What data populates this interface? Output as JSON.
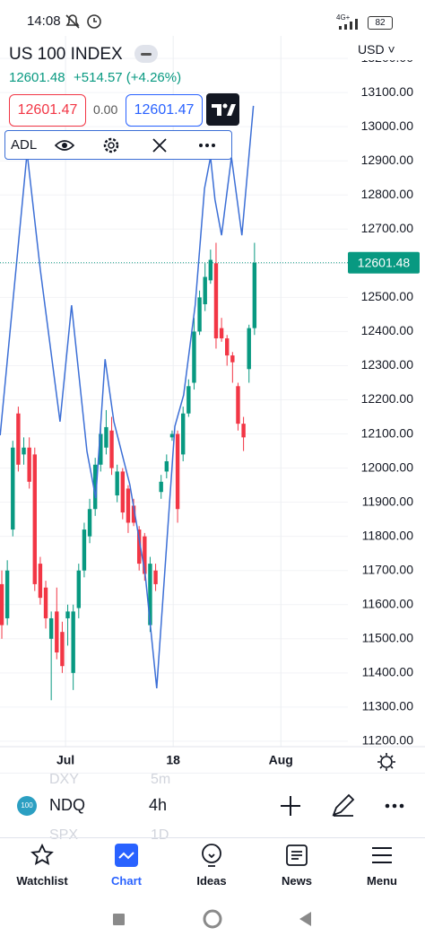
{
  "status_bar": {
    "time": "14:08",
    "network": "4G+",
    "battery": "82"
  },
  "header": {
    "title": "US 100 INDEX",
    "price": "12601.48",
    "change": "+514.57 (+4.26%)",
    "sell": "12601.47",
    "spread": "0.00",
    "buy": "12601.47",
    "currency": "USD"
  },
  "chart_data": {
    "type": "candlestick",
    "open": [
      11660,
      11560,
      11820,
      12160,
      12040,
      12060,
      12040,
      11720,
      11650,
      11500,
      11580,
      11520,
      11560,
      11400,
      11590,
      11700,
      11800,
      11880,
      12010,
      12060,
      12110,
      11920,
      11990,
      11940,
      11890,
      11820,
      11800,
      11540,
      11700,
      11930,
      11990,
      12090,
      12100,
      12040,
      12160,
      12250,
      12400,
      12480,
      12550,
      12600,
      12410,
      12380,
      12330,
      12240,
      12130,
      12290,
      12410
    ],
    "high": [
      11700,
      11730,
      12080,
      12180,
      12090,
      12090,
      12060,
      11740,
      11670,
      11580,
      11650,
      11550,
      11600,
      11600,
      11720,
      11840,
      11910,
      12030,
      12130,
      12170,
      12150,
      12010,
      12000,
      11950,
      11910,
      11830,
      11810,
      11740,
      11720,
      11980,
      12040,
      12110,
      12110,
      12180,
      12260,
      12440,
      12520,
      12600,
      12640,
      12660,
      12440,
      12390,
      12340,
      12250,
      12150,
      12420,
      12660
    ],
    "low": [
      11500,
      11540,
      11800,
      11990,
      12010,
      11940,
      11640,
      11600,
      11530,
      11320,
      11440,
      11400,
      11480,
      11350,
      11560,
      11680,
      11780,
      11860,
      11990,
      12040,
      11980,
      11900,
      11850,
      11810,
      11830,
      11700,
      11670,
      11520,
      11640,
      11910,
      11970,
      12080,
      11840,
      12020,
      12150,
      12230,
      12390,
      12460,
      12540,
      12350,
      12370,
      12300,
      12250,
      12110,
      12050,
      12250,
      12390
    ],
    "close": [
      11540,
      11700,
      12060,
      12010,
      12060,
      11960,
      11660,
      11620,
      11560,
      11560,
      11460,
      11420,
      11580,
      11580,
      11700,
      11820,
      11880,
      12010,
      12100,
      12120,
      12000,
      11990,
      11870,
      11840,
      11840,
      11720,
      11690,
      11720,
      11660,
      11960,
      12020,
      12100,
      11880,
      12160,
      12240,
      12400,
      12500,
      12560,
      12610,
      12380,
      12380,
      12330,
      12310,
      12130,
      12090,
      12410,
      12601.48
    ],
    "up_color": "#089981",
    "down_color": "#f23645",
    "indicator": {
      "name": "ADL",
      "color": "#3c6fd6",
      "x": [
        -0.3,
        4.6,
        7.0,
        10.6,
        12.7,
        15.5,
        17.1,
        18.8,
        20.4,
        23.3,
        26.1,
        28.2,
        31.5,
        33.1,
        35.2,
        36.9,
        38.0,
        38.8,
        40.0,
        41.8,
        43.7,
        45.8
      ],
      "values": [
        12096,
        12924,
        12582,
        12136,
        12477,
        12049,
        11912,
        12319,
        12136,
        11952,
        11689,
        11355,
        12122,
        12214,
        12477,
        12819,
        12911,
        12787,
        12682,
        12911,
        12682,
        13061
      ]
    },
    "last_price": 12601.48,
    "last_price_color": "#089981",
    "xlim": [
      -0.33,
      63
    ],
    "xticks": [
      {
        "value": 11.6,
        "label": "Jul"
      },
      {
        "value": 31.2,
        "label": "18"
      },
      {
        "value": 50.8,
        "label": "Aug"
      }
    ],
    "ylim": [
      11184,
      13266
    ],
    "yticks": [
      {
        "value": 11200,
        "label": "11200.00"
      },
      {
        "value": 11300,
        "label": "11300.00"
      },
      {
        "value": 11400,
        "label": "11400.00"
      },
      {
        "value": 11500,
        "label": "11500.00"
      },
      {
        "value": 11600,
        "label": "11600.00"
      },
      {
        "value": 11700,
        "label": "11700.00"
      },
      {
        "value": 11800,
        "label": "11800.00"
      },
      {
        "value": 11900,
        "label": "11900.00"
      },
      {
        "value": 12000,
        "label": "12000.00"
      },
      {
        "value": 12100,
        "label": "12100.00"
      },
      {
        "value": 12200,
        "label": "12200.00"
      },
      {
        "value": 12300,
        "label": "12300.00"
      },
      {
        "value": 12400,
        "label": "12400.00"
      },
      {
        "value": 12500,
        "label": "12500.00"
      },
      {
        "value": 12600,
        "label": "12600.00"
      },
      {
        "value": 12700,
        "label": "12700.00"
      },
      {
        "value": 12800,
        "label": "12800.00"
      },
      {
        "value": 12900,
        "label": "12900.00"
      },
      {
        "value": 13000,
        "label": "13000.00"
      },
      {
        "value": 13100,
        "label": "13100.00"
      },
      {
        "value": 13200,
        "label": "13200.00"
      }
    ],
    "grid": true
  },
  "toolbar": {
    "badge": "100",
    "symbol": "NDQ",
    "interval": "4h",
    "ghost": [
      "DXY",
      "5m",
      "SPX",
      "1D"
    ]
  },
  "nav": [
    "Watchlist",
    "Chart",
    "Ideas",
    "News",
    "Menu"
  ]
}
